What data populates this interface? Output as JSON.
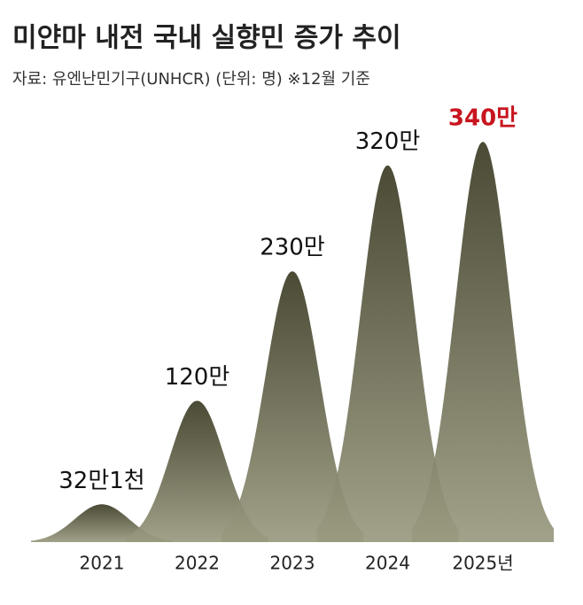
{
  "chart_data": {
    "type": "bell",
    "title": "미얀마 내전 국내 실향민 증가 추이",
    "subtitle": "자료: 유엔난민기구(UNHCR) (단위: 명) ※12월 기준",
    "categories": [
      "2021",
      "2022",
      "2023",
      "2024",
      "2025년"
    ],
    "values": [
      32.1,
      120,
      230,
      320,
      340
    ],
    "value_labels": [
      "32만1천",
      "120만",
      "230만",
      "320만",
      "340만"
    ],
    "value_label_colors": [
      "#111111",
      "#111111",
      "#111111",
      "#111111",
      "#c8151f"
    ],
    "color": "#3b3b24",
    "ylim": [
      0,
      340
    ]
  }
}
